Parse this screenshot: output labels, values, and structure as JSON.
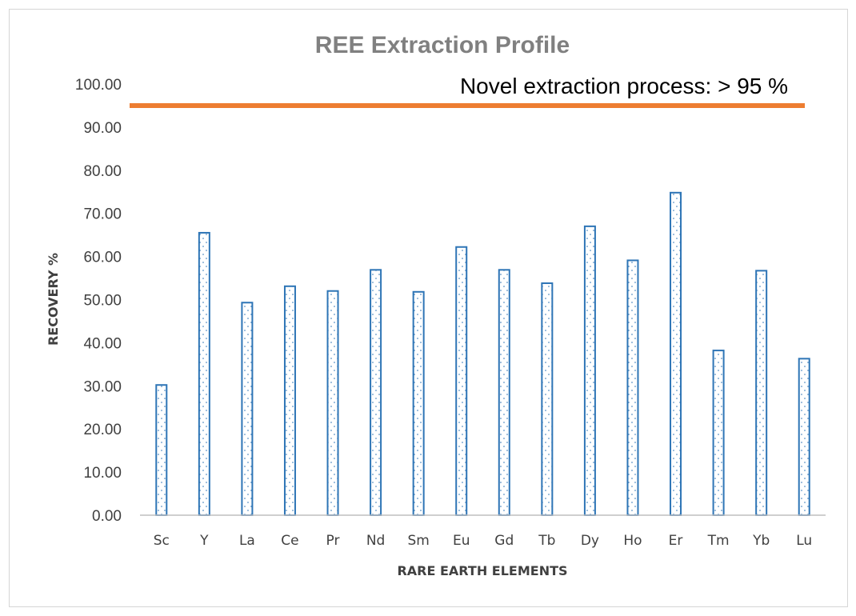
{
  "chart_data": {
    "type": "bar",
    "title": "REE Extraction Profile",
    "xlabel": "RARE EARTH ELEMENTS",
    "ylabel": "RECOVERY %",
    "ylim": [
      0,
      100
    ],
    "yticks": [
      "0.00",
      "10.00",
      "20.00",
      "30.00",
      "40.00",
      "50.00",
      "60.00",
      "70.00",
      "80.00",
      "90.00",
      "100.00"
    ],
    "categories": [
      "Sc",
      "Y",
      "La",
      "Ce",
      "Pr",
      "Nd",
      "Sm",
      "Eu",
      "Gd",
      "Tb",
      "Dy",
      "Ho",
      "Er",
      "Tm",
      "Yb",
      "Lu"
    ],
    "values": [
      30.2,
      65.5,
      49.3,
      53.1,
      52.0,
      56.9,
      51.8,
      62.2,
      56.9,
      53.8,
      67.0,
      59.1,
      74.8,
      38.2,
      56.7,
      36.3
    ],
    "grid": false,
    "reference_line": {
      "value": 95,
      "label": "Novel extraction process: > 95 %",
      "color": "#ed7d31"
    },
    "bar_color": "#2e75b6"
  }
}
